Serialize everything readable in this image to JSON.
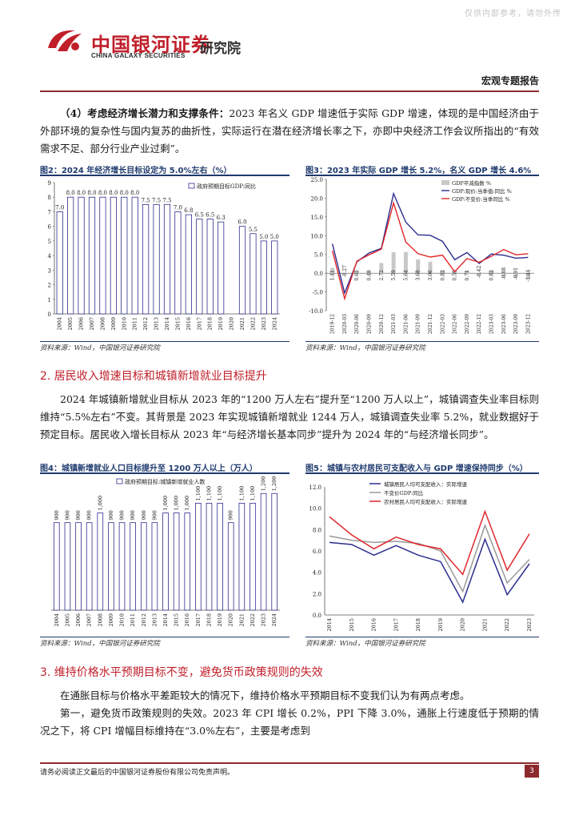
{
  "header": {
    "watermark": "仅供内部参考，请勿外传",
    "company_cn": "中国银河证券",
    "company_en": "CHINA GALAXY SECURITIES",
    "institute": "研究院",
    "report_type": "宏观专题报告",
    "logo_color": "#c01f2a"
  },
  "intro": {
    "lead": "（4）考虑经济增长潜力和支撑条件：",
    "text": "2023 年名义 GDP 增速低于实际 GDP 增速，体现的是中国经济由于外部环境的复杂性与国内复苏的曲折性，实际运行在潜在经济增长率之下，亦即中央经济工作会议所指出的“有效需求不足、部分行业产业过剩”。"
  },
  "figures": {
    "fig2": {
      "title": "图2：2024 年经济增长目标设定为 5.0%左右（%）",
      "source": "资料来源：Wind，中国银河证券研究院"
    },
    "fig3": {
      "title": "图3：2023 年实际 GDP 增长 5.2%，名义 GDP 增长 4.6%",
      "source": "资料来源：Wind，中国银河证券研究院"
    },
    "fig4": {
      "title": "图4：城镇新增就业人口目标提升至 1200 万人以上（万人）",
      "source": "资料来源：Wind，中国银河证券研究院"
    },
    "fig5": {
      "title": "图5：城镇与农村居民可支配收入与 GDP 增速保持同步（%）",
      "source": "资料来源：Wind，中国银河证券研究院"
    }
  },
  "section2": {
    "heading": "2. 居民收入增速目标和城镇新增就业目标提升",
    "text": "2024 年城镇新增就业目标从 2023 年的“1200 万人左右”提升至“1200 万人以上”，城镇调查失业率目标则维持“5.5%左右”不变。其背景是 2023 年实现城镇新增就业 1244 万人，城镇调查失业率 5.2%，就业数据好于预定目标。居民收入增长目标从 2023 年“与经济增长基本同步”提升为 2024 年的“与经济增长同步”。"
  },
  "section3": {
    "heading": "3. 维持价格水平预期目标不变，避免货币政策规则的失效",
    "text1": "在通胀目标与价格水平差距较大的情况下，维持价格水平预期目标不变我们认为有两点考虑。",
    "text2": "第一，避免货币政策规则的失效。2023 年 CPI 增长 0.2%，PPI 下降 3.0%，通胀上行速度低于预期的情况之下，将 CPI 增幅目标维持在“3.0%左右”，主要是考虑到"
  },
  "footer": {
    "disclaimer": "请务必阅读正文最后的中国银河证券股份有限公司免责声明。",
    "page": "3"
  },
  "chart_data": [
    {
      "id": "fig2",
      "type": "bar",
      "title": "2024 年经济增长目标设定为 5.0%左右（%）",
      "legend": [
        "政府预期目标GDP:同比"
      ],
      "categories": [
        "2004",
        "2005",
        "2006",
        "2007",
        "2008",
        "2009",
        "2010",
        "2011",
        "2012",
        "2013",
        "2014",
        "2015",
        "2016",
        "2017",
        "2018",
        "2019",
        "2020",
        "2021",
        "2022",
        "2023",
        "2024"
      ],
      "values": [
        7.0,
        8.0,
        8.0,
        8.0,
        8.0,
        8.0,
        8.0,
        8.0,
        7.5,
        7.5,
        7.5,
        7.0,
        6.8,
        6.5,
        6.5,
        6.3,
        null,
        6.0,
        5.5,
        5.0,
        5.0
      ],
      "labels": [
        "7.0",
        "8.0",
        "8.0",
        "8.0",
        "8.0",
        "8.0",
        "8.0",
        "8.0",
        "7.5",
        "7.5",
        "7.5",
        "7.0",
        "6.8",
        "6.5",
        "6.5",
        "6.3",
        "",
        "6.0",
        "5.5",
        "5.0",
        "5.0"
      ],
      "ylim": [
        0,
        9
      ],
      "yticks": [
        "0",
        "1",
        "2",
        "3",
        "4",
        "5",
        "6",
        "7",
        "8",
        "9"
      ],
      "color": "#ffffff"
    },
    {
      "id": "fig3",
      "type": "line",
      "title": "2023 年实际 GDP 增长 5.2%，名义 GDP 增长 4.6%",
      "legend": [
        "GDP平减指数 %",
        "GDP:现价:当季值:同比 %",
        "GDP:不变价:当季同比 %"
      ],
      "categories": [
        "2019-12",
        "2020-03",
        "2020-06",
        "2020-09",
        "2020-12",
        "2021-03",
        "2021-06",
        "2021-09",
        "2021-12",
        "2022-03",
        "2022-06",
        "2022-09",
        "2022-12",
        "2023-03",
        "2023-06",
        "2023-09",
        "2023-12"
      ],
      "tick_labels": [
        "2019-12",
        "2020-03",
        "2020-06",
        "2020-09",
        "2020-12",
        "2021-03",
        "2021-06",
        "2021-09",
        "2021-12",
        "2022-03",
        "2022-06",
        "2022-09",
        "2022-12",
        "2023-03",
        "2023-06",
        "2023-09",
        "2023-12"
      ],
      "ylim": [
        -10,
        25
      ],
      "yticks": [
        "-10.0",
        "-5.0",
        "0.0",
        "5.0",
        "10.0",
        "15.0",
        "20.0",
        "25.0"
      ],
      "series": [
        {
          "name": "GDP平减指数 %",
          "kind": "bar",
          "color": "#c8c8c8",
          "values": [
            1.41,
            -0.27,
            0.65,
            0.49,
            2.72,
            5.59,
            5.64,
            3.68,
            3.06,
            0.82,
            0.59,
            0.71,
            -0.42,
            0.82,
            -0.88,
            -0.91,
            -1.44
          ],
          "labels": [
            "1.41",
            "-0.27",
            "0.65",
            "0.49",
            "2.72",
            "5.59",
            "5.64",
            "3.68",
            "3.06",
            "0.82",
            "0.59",
            "0.71",
            "-0.42",
            "0.82",
            "-0.88",
            "-0.91",
            "-1.44"
          ]
        },
        {
          "name": "GDP:现价:当季值:同比 %",
          "kind": "line",
          "color": "#2d2d8f",
          "values": [
            7.8,
            -5.3,
            3.0,
            5.4,
            6.6,
            21.2,
            13.6,
            10.2,
            10.1,
            8.5,
            3.6,
            5.5,
            2.6,
            5.1,
            4.8,
            4.0,
            4.2
          ]
        },
        {
          "name": "GDP:不变价:当季同比 %",
          "kind": "line",
          "color": "#e0262b",
          "values": [
            6.0,
            -6.8,
            3.2,
            4.9,
            6.4,
            18.7,
            8.3,
            5.2,
            4.3,
            4.8,
            0.4,
            3.9,
            2.9,
            4.5,
            6.3,
            4.9,
            5.2
          ]
        }
      ]
    },
    {
      "id": "fig4",
      "type": "bar",
      "title": "城镇新增就业人口目标提升至 1200 万人以上（万人）",
      "legend": [
        "政府预期目标:城镇新增就业人数"
      ],
      "categories": [
        "2004",
        "2005",
        "2006",
        "2007",
        "2008",
        "2009",
        "2010",
        "2011",
        "2012",
        "2013",
        "2014",
        "2015",
        "2016",
        "2017",
        "2018",
        "2019",
        "2020",
        "2021",
        "2022",
        "2023",
        "2024"
      ],
      "values": [
        900,
        900,
        900,
        900,
        1000,
        900,
        900,
        900,
        900,
        900,
        1000,
        1000,
        1000,
        1100,
        1100,
        1100,
        900,
        1100,
        1100,
        1200,
        1200
      ],
      "labels": [
        "900",
        "900",
        "900",
        "900",
        "1,000",
        "900",
        "900",
        "900",
        "900",
        "900",
        "1,000",
        "1,000",
        "1,000",
        "1,100",
        "1,100",
        "1,100",
        "900",
        "1,100",
        "1,100",
        "1,200",
        "1,200"
      ],
      "ylim": [
        0,
        1350
      ],
      "color": "#ffffff"
    },
    {
      "id": "fig5",
      "type": "line",
      "title": "城镇与农村居民可支配收入与 GDP 增速保持同步（%）",
      "legend": [
        "城镇居民人均可支配收入：实际增速",
        "不变价GDP:同比",
        "农村居民人均可支配收入：实际增速"
      ],
      "categories": [
        "2014",
        "2015",
        "2016",
        "2017",
        "2018",
        "2019",
        "2020",
        "2021",
        "2022",
        "2023"
      ],
      "ylim": [
        0,
        12
      ],
      "yticks": [
        "0.0",
        "2.0",
        "4.0",
        "6.0",
        "8.0",
        "10.0",
        "12.0"
      ],
      "series": [
        {
          "name": "城镇居民人均可支配收入：实际增速",
          "color": "#2d2d8f",
          "values": [
            6.8,
            6.6,
            5.6,
            6.5,
            5.6,
            5.0,
            1.2,
            7.1,
            1.9,
            4.8
          ]
        },
        {
          "name": "不变价GDP:同比",
          "color": "#9a9a9a",
          "values": [
            7.4,
            7.0,
            6.8,
            6.9,
            6.7,
            6.0,
            2.2,
            8.4,
            3.0,
            5.2
          ]
        },
        {
          "name": "农村居民人均可支配收入：实际增速",
          "color": "#e0262b",
          "values": [
            9.2,
            7.5,
            6.2,
            7.3,
            6.6,
            6.2,
            3.8,
            9.7,
            4.2,
            7.6
          ]
        }
      ]
    }
  ]
}
